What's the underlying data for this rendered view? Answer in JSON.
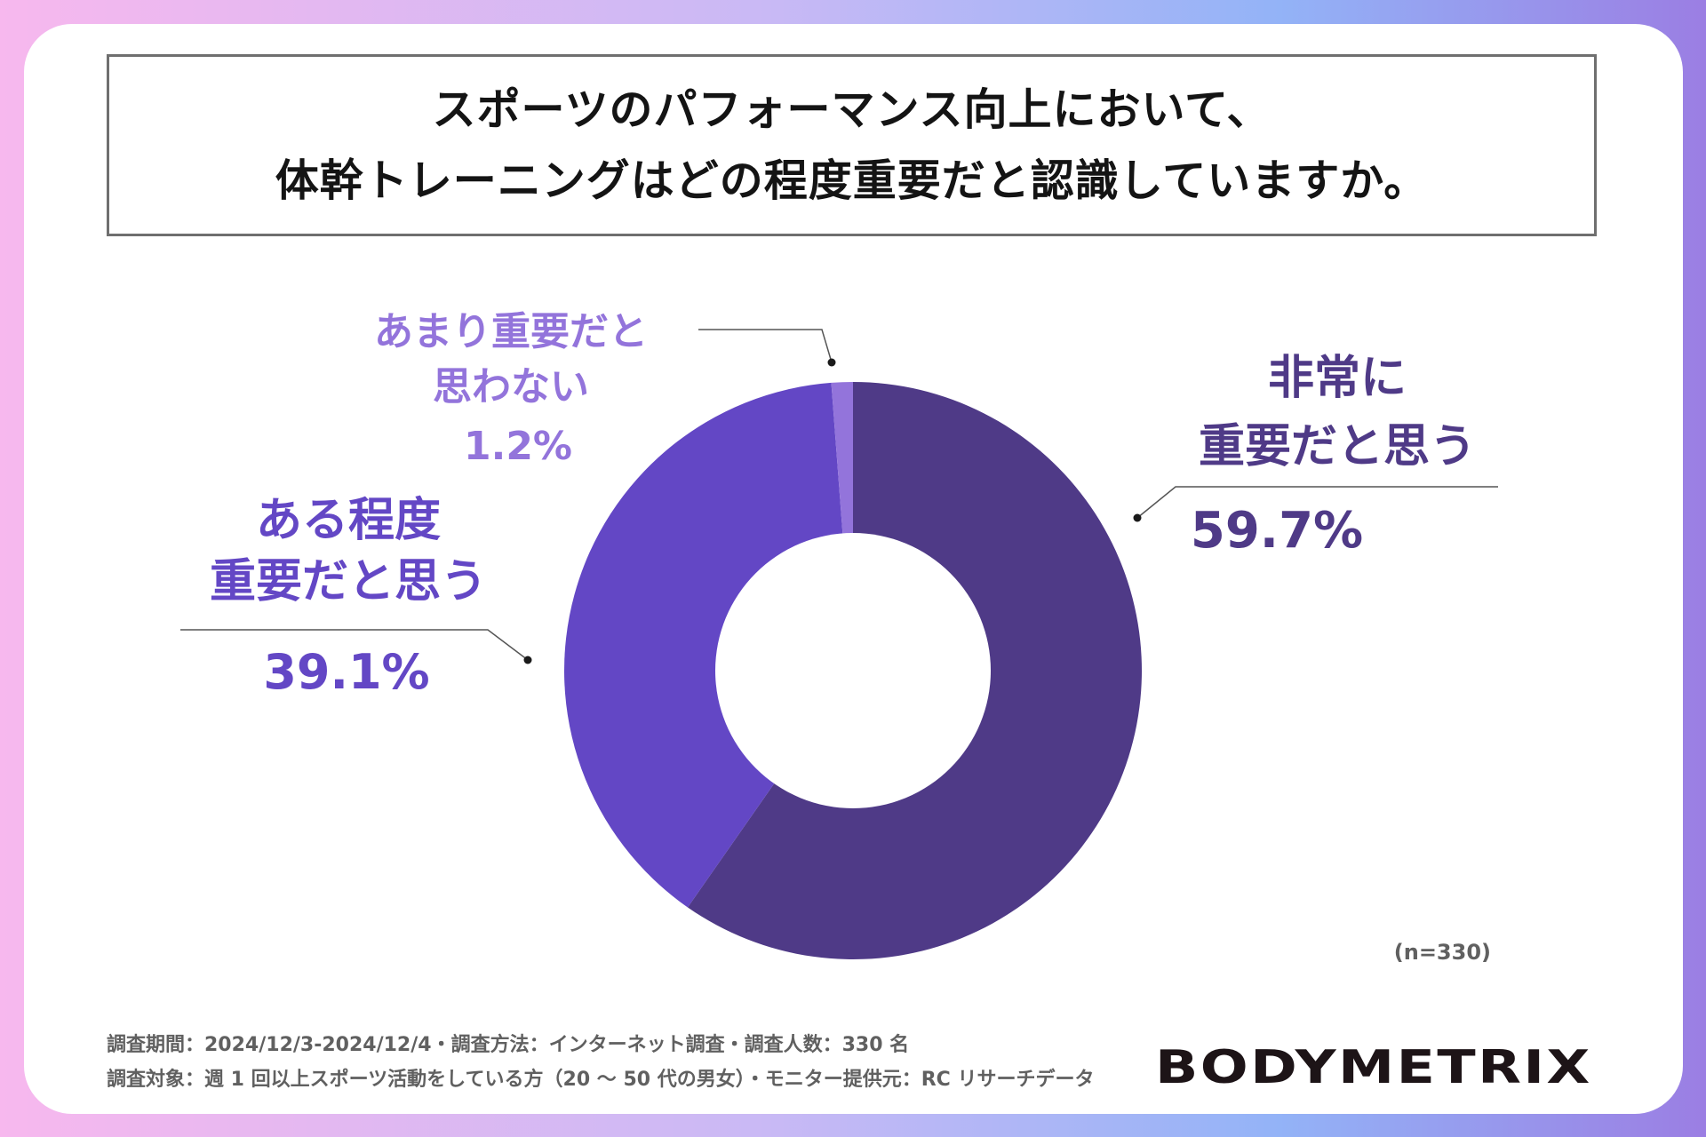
{
  "title": {
    "line1": "スポーツのパフォーマンス向上において、",
    "line2": "体幹トレーニングはどの程度重要だと認識していますか。"
  },
  "chart_data": {
    "type": "pie",
    "donut": true,
    "start": "12 o'clock, clockwise",
    "slices": [
      {
        "label_lines": [
          "非常に",
          "重要だと思う"
        ],
        "value": 59.7,
        "value_label": "59.7%",
        "color": "#4f3a87"
      },
      {
        "label_lines": [
          "ある程度",
          "重要だと思う"
        ],
        "value": 39.1,
        "value_label": "39.1%",
        "color": "#6347c5"
      },
      {
        "label_lines": [
          "あまり重要だと",
          "思わない"
        ],
        "value": 1.2,
        "value_label": "1.2%",
        "color": "#9374db"
      }
    ],
    "n_label": "(n=330)"
  },
  "footer": {
    "line1": "調査期間：2024/12/3-2024/12/4・調査方法：インターネット調査・調査人数：330 名",
    "line2": "調査対象：週 1 回以上スポーツ活動をしている方（20 ～ 50 代の男女）・モニター提供元：RC リサーチデータ",
    "logo": "BODYMETRIX"
  },
  "colors": {
    "background_gradient": [
      "#f7b8ee",
      "#93b3f7",
      "#9b7ee3"
    ],
    "card": "#ffffff",
    "title_border": "#6f6f6f",
    "leader_line": "#555555"
  }
}
